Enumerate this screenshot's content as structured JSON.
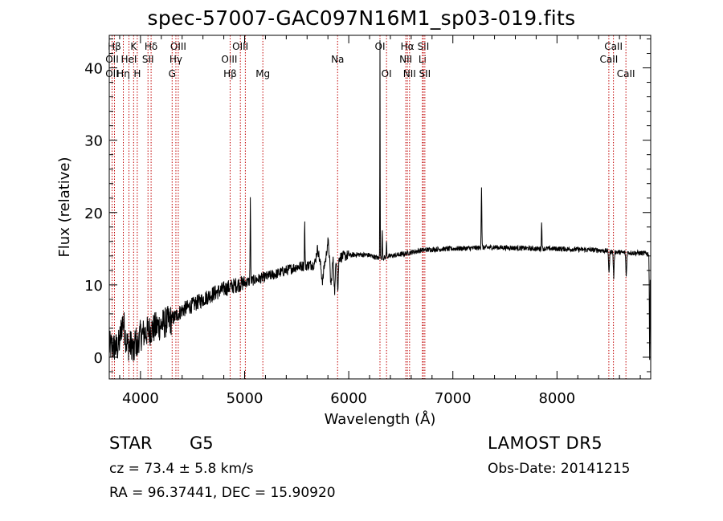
{
  "chart_data": {
    "type": "line",
    "title": "spec-57007-GAC097N16M1_sp03-019.fits",
    "xlabel": "Wavelength (Å)",
    "ylabel": "Flux (relative)",
    "xlim": [
      3700,
      8900
    ],
    "ylim": [
      -3,
      44.5
    ],
    "xticks": [
      4000,
      5000,
      6000,
      7000,
      8000
    ],
    "yticks": [
      0,
      10,
      20,
      30,
      40
    ],
    "line_color": "#000000",
    "marker_color": "#c00000",
    "continuum": [
      [
        3700,
        1.5
      ],
      [
        3800,
        1.2
      ],
      [
        3900,
        1.6
      ],
      [
        4000,
        3.0
      ],
      [
        4100,
        3.8
      ],
      [
        4200,
        4.5
      ],
      [
        4300,
        5.2
      ],
      [
        4400,
        6.5
      ],
      [
        4500,
        7.2
      ],
      [
        4600,
        8.0
      ],
      [
        4700,
        8.8
      ],
      [
        4800,
        9.4
      ],
      [
        4900,
        9.9
      ],
      [
        5000,
        10.3
      ],
      [
        5100,
        10.7
      ],
      [
        5200,
        11.1
      ],
      [
        5300,
        11.5
      ],
      [
        5400,
        12.0
      ],
      [
        5500,
        12.5
      ],
      [
        5600,
        12.7
      ],
      [
        5700,
        12.9
      ],
      [
        5800,
        13.4
      ],
      [
        5900,
        13.8
      ],
      [
        6000,
        14.1
      ],
      [
        6100,
        14.2
      ],
      [
        6200,
        14.1
      ],
      [
        6300,
        13.6
      ],
      [
        6400,
        14.0
      ],
      [
        6500,
        14.2
      ],
      [
        6600,
        14.5
      ],
      [
        6700,
        14.8
      ],
      [
        6800,
        14.9
      ],
      [
        7000,
        15.0
      ],
      [
        7200,
        15.1
      ],
      [
        7400,
        15.2
      ],
      [
        7600,
        15.1
      ],
      [
        7800,
        15.0
      ],
      [
        8000,
        15.0
      ],
      [
        8200,
        14.9
      ],
      [
        8400,
        14.8
      ],
      [
        8600,
        14.5
      ],
      [
        8800,
        14.4
      ],
      [
        8900,
        14.3
      ]
    ],
    "features": [
      {
        "x": 3830,
        "w": 20,
        "h": 3.5
      },
      {
        "x": 3934,
        "w": 6,
        "h": -2.0
      },
      {
        "x": 3969,
        "w": 6,
        "h": -1.5
      },
      {
        "x": 5055,
        "w": 2.5,
        "h": 11.5
      },
      {
        "x": 5577,
        "w": 2.5,
        "h": 5.8
      },
      {
        "x": 5700,
        "w": 12,
        "h": 2.0
      },
      {
        "x": 5748,
        "w": 10,
        "h": -2.5
      },
      {
        "x": 5800,
        "w": 10,
        "h": 2.5
      },
      {
        "x": 5830,
        "w": 8,
        "h": -3.5
      },
      {
        "x": 5865,
        "w": 6,
        "h": -4.5
      },
      {
        "x": 5895,
        "w": 5,
        "h": -4.5
      },
      {
        "x": 6300,
        "w": 1.8,
        "h": 30.5
      },
      {
        "x": 6322,
        "w": 2.5,
        "h": 4.0
      },
      {
        "x": 6363,
        "w": 2.5,
        "h": 2.0
      },
      {
        "x": 7275,
        "w": 3,
        "h": 8.5
      },
      {
        "x": 7853,
        "w": 2.5,
        "h": 3.8
      },
      {
        "x": 8500,
        "w": 4,
        "h": -3.0
      },
      {
        "x": 8545,
        "w": 4,
        "h": -3.5
      },
      {
        "x": 8665,
        "w": 4,
        "h": -3.2
      },
      {
        "x": 8890,
        "w": 3,
        "h": -14.5
      }
    ],
    "lines": [
      {
        "label": "Hβ",
        "x": 3750,
        "row": 0,
        "offset": 0
      },
      {
        "label": "K",
        "x": 3934,
        "row": 0,
        "offset": 0
      },
      {
        "label": "Hδ",
        "x": 4102,
        "row": 0,
        "offset": 0
      },
      {
        "label": "OIII",
        "x": 4363,
        "row": 0,
        "offset": 0
      },
      {
        "label": "OIII",
        "x": 4959,
        "row": 0,
        "offset": 0
      },
      {
        "label": "OI",
        "x": 6300,
        "row": 0,
        "offset": 0
      },
      {
        "label": "Hα",
        "x": 6563,
        "row": 0,
        "offset": 0
      },
      {
        "label": "SII",
        "x": 6716,
        "row": 0,
        "offset": 0
      },
      {
        "label": "CaII",
        "x": 8542,
        "row": 0,
        "offset": 0
      },
      {
        "label": "OII",
        "x": 3727,
        "row": 1,
        "offset": 0
      },
      {
        "label": "HeI",
        "x": 3889,
        "row": 1,
        "offset": 0
      },
      {
        "label": "SII",
        "x": 4072,
        "row": 1,
        "offset": 0
      },
      {
        "label": "Hγ",
        "x": 4340,
        "row": 1,
        "offset": 0
      },
      {
        "label": "OIII",
        "x": 5007,
        "row": 1,
        "offset": -20
      },
      {
        "label": "NII",
        "x": 6548,
        "row": 1,
        "offset": 0
      },
      {
        "label": "Li",
        "x": 6708,
        "row": 1,
        "offset": 0
      },
      {
        "label": "CaII",
        "x": 8498,
        "row": 1,
        "offset": 0
      },
      {
        "label": "OII",
        "x": 3727,
        "row": 2,
        "offset": 0
      },
      {
        "label": "Hη",
        "x": 3835,
        "row": 2,
        "offset": 0
      },
      {
        "label": "H",
        "x": 3969,
        "row": 2,
        "offset": 0
      },
      {
        "label": "G",
        "x": 4304,
        "row": 2,
        "offset": 0
      },
      {
        "label": "Hβ",
        "x": 4861,
        "row": 2,
        "offset": 0
      },
      {
        "label": "Mg",
        "x": 5175,
        "row": 2,
        "offset": 0
      },
      {
        "label": "Na",
        "x": 5893,
        "row": 1,
        "offset": 0
      },
      {
        "label": "OI",
        "x": 6363,
        "row": 2,
        "offset": 0
      },
      {
        "label": "NII",
        "x": 6584,
        "row": 2,
        "offset": 0
      },
      {
        "label": "SII",
        "x": 6731,
        "row": 2,
        "offset": 0
      },
      {
        "label": "CaII",
        "x": 8662,
        "row": 2,
        "offset": 0
      }
    ]
  },
  "info": {
    "class_label": "STAR",
    "subclass_label": "G5",
    "survey_label": "LAMOST DR5",
    "redshift_line": "cz = 73.4 ± 5.8 km/s",
    "obs_date_line": "Obs-Date: 20141215",
    "coords_line": "RA =  96.37441, DEC =  15.90920"
  }
}
